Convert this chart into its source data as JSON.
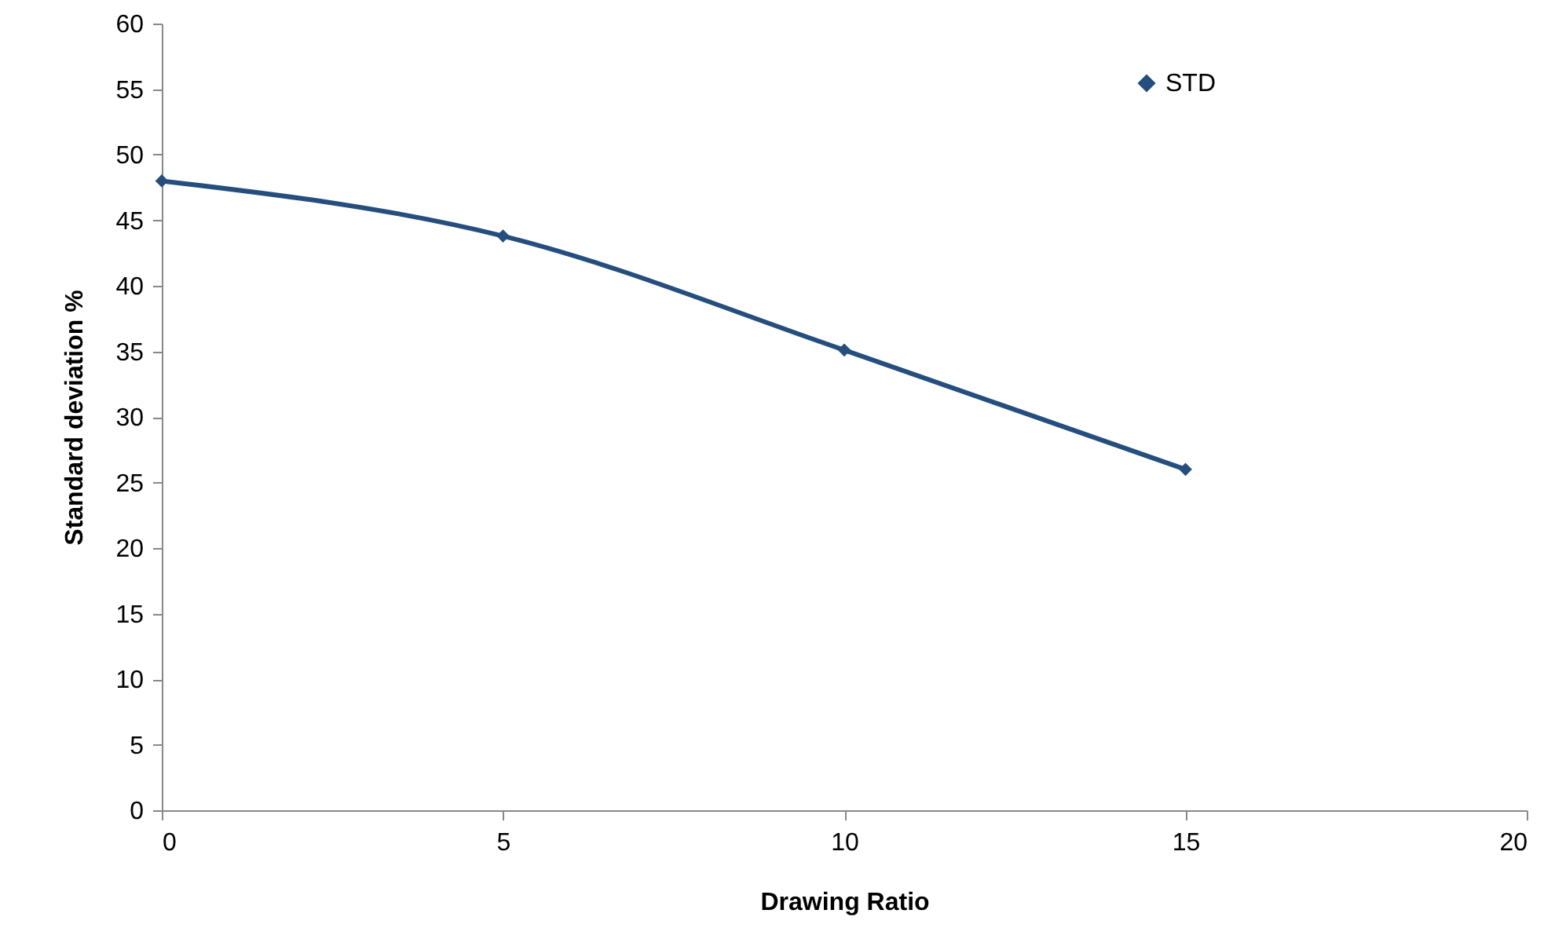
{
  "chart_data": {
    "type": "line",
    "xlabel": "Drawing Ratio",
    "ylabel": "Standard deviation   %",
    "x": [
      0,
      5,
      10,
      15
    ],
    "series": [
      {
        "name": "STD",
        "color": "#254e7e",
        "values": [
          48,
          43.8,
          35.1,
          26
        ]
      }
    ],
    "xlim": [
      0,
      20
    ],
    "xticks": [
      0,
      5,
      10,
      15,
      20
    ],
    "ylim": [
      0,
      60
    ],
    "yticks": [
      0,
      5,
      10,
      15,
      20,
      25,
      30,
      35,
      40,
      45,
      50,
      55,
      60
    ],
    "grid": false,
    "legend": "top right",
    "marker": "diamond",
    "line_style": "solid"
  }
}
